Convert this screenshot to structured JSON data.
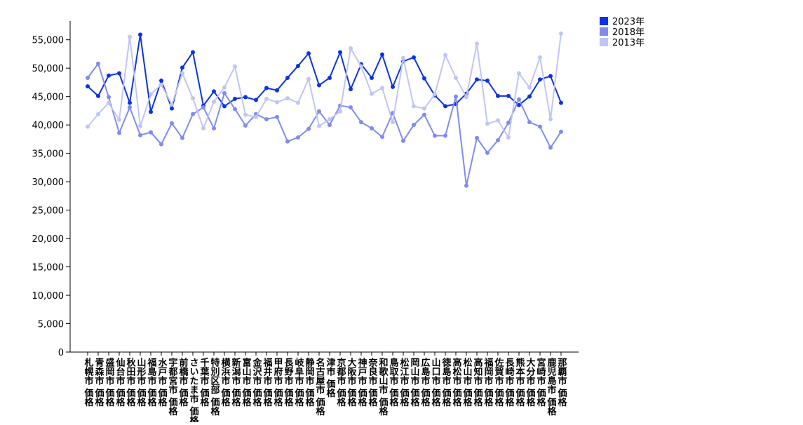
{
  "chart_data": {
    "type": "line",
    "categories": [
      "札幌市 価格",
      "青森市 価格",
      "盛岡市 価格",
      "仙台市 価格",
      "秋田市 価格",
      "山形市 価格",
      "福島市 価格",
      "水戸市 価格",
      "宇都宮市 価格",
      "前橋市 価格",
      "さいたま市 価格",
      "千葉市 価格",
      "特別区部 価格",
      "横浜市 価格",
      "新潟市 価格",
      "富山市 価格",
      "金沢市 価格",
      "福井市 価格",
      "甲府市 価格",
      "長野市 価格",
      "岐阜市 価格",
      "静岡市 価格",
      "名古屋市 価格",
      "津市 価格",
      "京都市 価格",
      "大阪市 価格",
      "神戸市 価格",
      "奈良市 価格",
      "和歌山市 価格",
      "鳥取市 価格",
      "松江市 価格",
      "岡山市 価格",
      "広島市 価格",
      "山口市 価格",
      "徳島市 価格",
      "高松市 価格",
      "松山市 価格",
      "高知市 価格",
      "福岡市 価格",
      "佐賀市 価格",
      "長崎市 価格",
      "熊本市 価格",
      "大分市 価格",
      "宮崎市 価格",
      "鹿児島市 価格",
      "那覇市 価格"
    ],
    "series": [
      {
        "name": "2023年",
        "color": "#0a32e6",
        "values": [
          46800,
          45100,
          48700,
          49100,
          43900,
          55900,
          42300,
          47800,
          42900,
          50100,
          52800,
          43400,
          45900,
          43300,
          44600,
          44900,
          44400,
          46500,
          46100,
          48300,
          50400,
          52600,
          47000,
          48300,
          52800,
          46300,
          50700,
          48300,
          52400,
          46700,
          51200,
          51900,
          48200,
          45200,
          43300,
          43700,
          45500,
          48000,
          47800,
          45100,
          45100,
          43500,
          45000,
          48000,
          48600,
          43900
        ]
      },
      {
        "name": "2018年",
        "color": "#7f8bef",
        "values": [
          48300,
          50800,
          44900,
          38600,
          43100,
          38200,
          38700,
          36600,
          40300,
          37700,
          41900,
          43100,
          39400,
          45600,
          42800,
          39900,
          41900,
          41000,
          41400,
          37100,
          37800,
          39300,
          42400,
          40000,
          43400,
          43100,
          40500,
          39400,
          37900,
          42100,
          37200,
          40000,
          41800,
          38100,
          38100,
          45000,
          29300,
          37700,
          35100,
          37300,
          40400,
          44500,
          40500,
          39700,
          36000,
          38800
        ]
      },
      {
        "name": "2013年",
        "color": "#c0c5f7",
        "values": [
          39700,
          41900,
          43900,
          40900,
          55500,
          39800,
          45400,
          47100,
          43600,
          49100,
          44700,
          39400,
          44100,
          46600,
          50300,
          41800,
          41400,
          44600,
          44000,
          44700,
          43900,
          48100,
          39800,
          41000,
          42400,
          53500,
          50300,
          45500,
          46500,
          40500,
          51800,
          43300,
          42900,
          45400,
          52300,
          48300,
          44900,
          54300,
          40200,
          40800,
          37800,
          49100,
          46600,
          51900,
          41000,
          56100
        ]
      }
    ],
    "ylim": [
      0,
      58300
    ],
    "yticks": [
      0,
      {
        "value": 5000,
        "label": "5,000"
      },
      {
        "value": 10000,
        "label": "10,000"
      },
      {
        "value": 15000,
        "label": "15,000"
      },
      {
        "value": 20000,
        "label": "20,000"
      },
      {
        "value": 25000,
        "label": "25,000"
      },
      {
        "value": 30000,
        "label": "30,000"
      },
      {
        "value": 35000,
        "label": "35,000"
      },
      {
        "value": 40000,
        "label": "40,000"
      },
      {
        "value": 45000,
        "label": "45,000"
      },
      {
        "value": 50000,
        "label": "50,000"
      },
      {
        "value": 55000,
        "label": "55,000"
      }
    ],
    "legend": "top-right"
  }
}
